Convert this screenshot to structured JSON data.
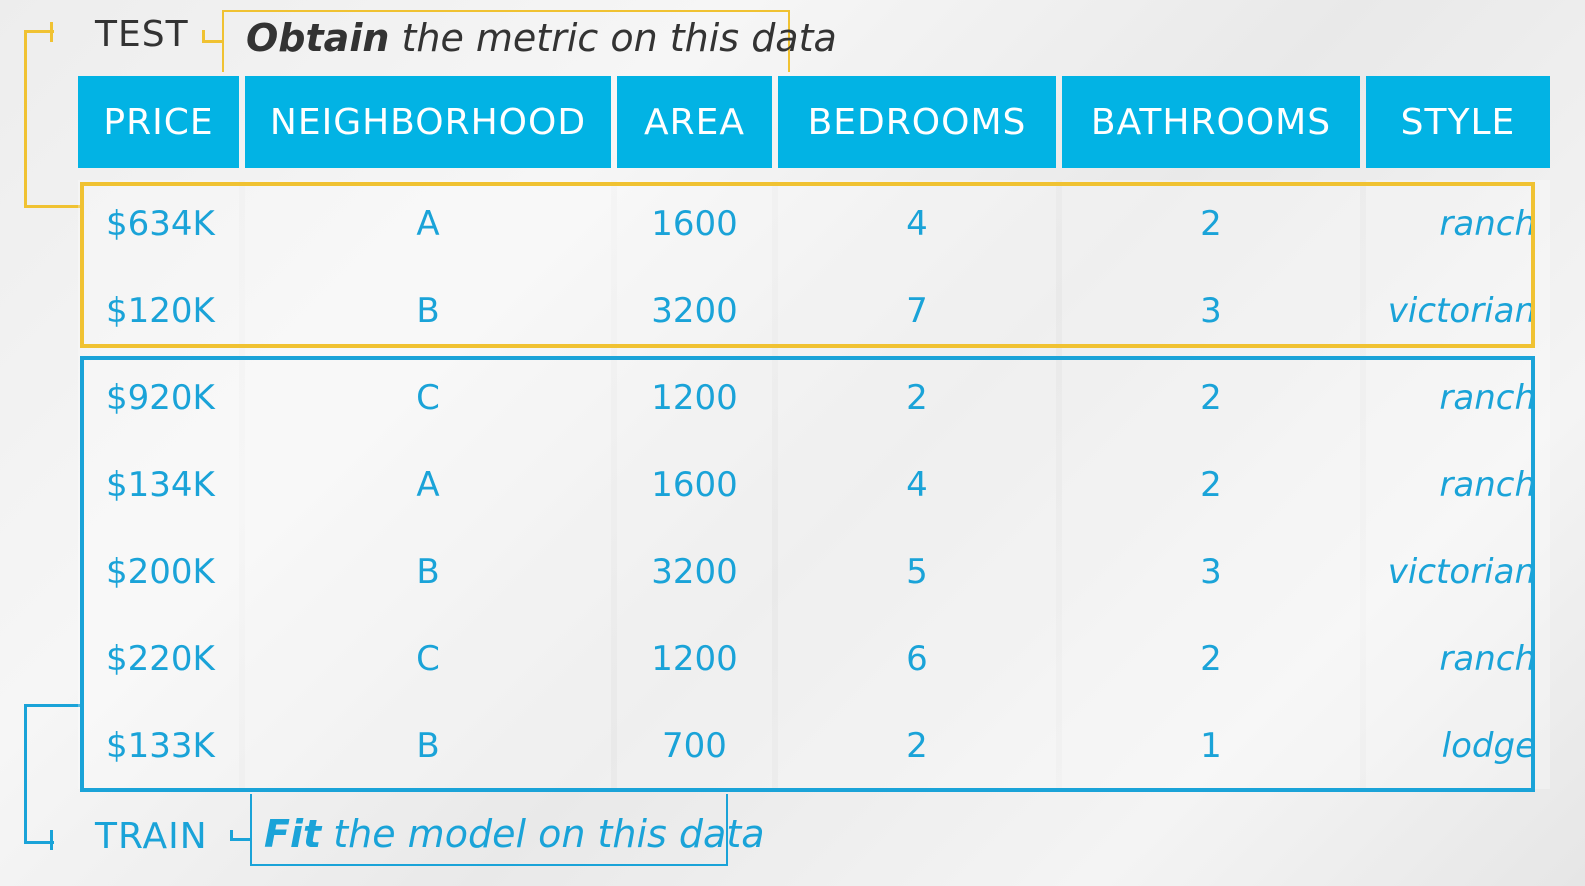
{
  "test": {
    "label": "TEST",
    "note_bold": "Obtain",
    "note_rest": " the metric on this data"
  },
  "train": {
    "label": "TRAIN",
    "note_bold": "Fit",
    "note_rest": " the model on this data"
  },
  "colors": {
    "header_bg": "#02b3e4",
    "accent_blue": "#1aa3d8",
    "test_yellow": "#f0c232"
  },
  "table": {
    "headers": [
      "PRICE",
      "NEIGHBORHOOD",
      "AREA",
      "BEDROOMS",
      "BATHROOMS",
      "STYLE"
    ],
    "test_rows": [
      [
        "$634K",
        "A",
        "1600",
        "4",
        "2",
        "ranch"
      ],
      [
        "$120K",
        "B",
        "3200",
        "7",
        "3",
        "victorian"
      ]
    ],
    "train_rows": [
      [
        "$920K",
        "C",
        "1200",
        "2",
        "2",
        "ranch"
      ],
      [
        "$134K",
        "A",
        "1600",
        "4",
        "2",
        "ranch"
      ],
      [
        "$200K",
        "B",
        "3200",
        "5",
        "3",
        "victorian"
      ],
      [
        "$220K",
        "C",
        "1200",
        "6",
        "2",
        "ranch"
      ],
      [
        "$133K",
        "B",
        "700",
        "2",
        "1",
        "lodge"
      ]
    ]
  }
}
